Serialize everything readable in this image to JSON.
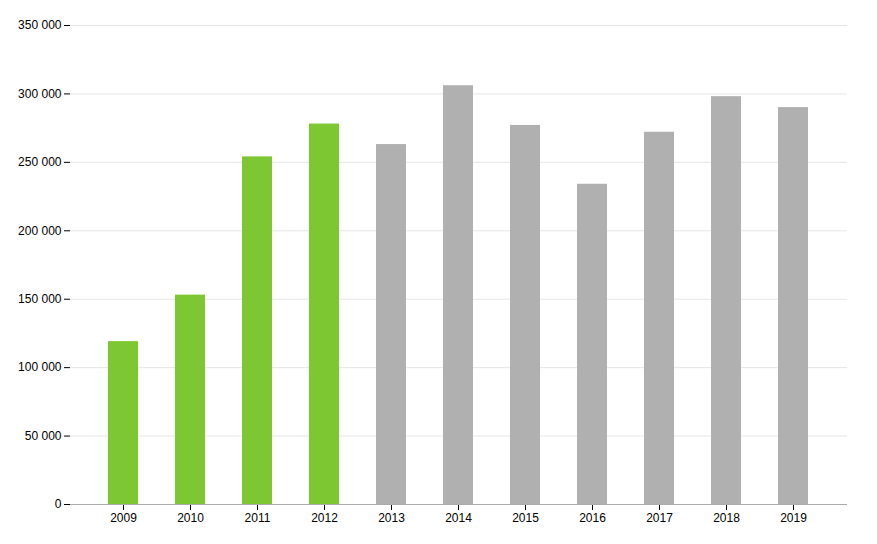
{
  "chart_data": {
    "type": "bar",
    "categories": [
      "2009",
      "2010",
      "2011",
      "2012",
      "2013",
      "2014",
      "2015",
      "2016",
      "2017",
      "2018",
      "2019"
    ],
    "values": [
      119000,
      153000,
      254000,
      278000,
      263000,
      306000,
      277000,
      234000,
      272000,
      298000,
      290000
    ],
    "colors": [
      "#7dc832",
      "#7dc832",
      "#7dc832",
      "#7dc832",
      "#b0b0b0",
      "#b0b0b0",
      "#b0b0b0",
      "#b0b0b0",
      "#b0b0b0",
      "#b0b0b0",
      "#b0b0b0"
    ],
    "ylim": [
      0,
      350000
    ],
    "yticks": [
      0,
      {
        "value": 50000,
        "label": "50 000"
      },
      {
        "value": 100000,
        "label": "100 000"
      },
      {
        "value": 150000,
        "label": "150 000"
      },
      {
        "value": 200000,
        "label": "200 000"
      },
      {
        "value": 250000,
        "label": "250 000"
      },
      {
        "value": 300000,
        "label": "300 000"
      },
      {
        "value": 350000,
        "label": "350 000"
      }
    ],
    "grid": true
  }
}
